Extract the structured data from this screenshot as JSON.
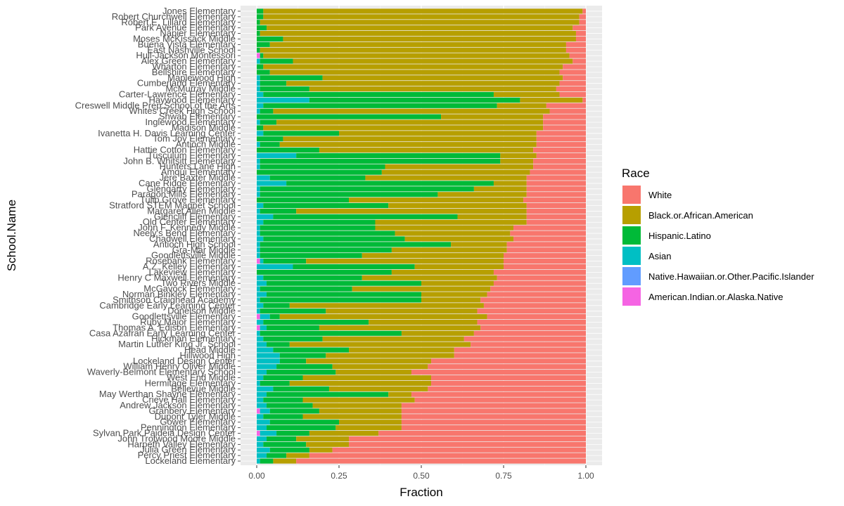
{
  "chart_data": {
    "type": "bar",
    "orientation": "horizontal",
    "stacked": true,
    "xlabel": "Fraction",
    "ylabel": "School.Name",
    "xlim": [
      0,
      1
    ],
    "x_ticks": [
      "0.00",
      "0.25",
      "0.50",
      "0.75",
      "1.00"
    ],
    "grid": true,
    "legend_position": "right",
    "legend": {
      "title": "Race",
      "entries": [
        {
          "name": "White",
          "color": "#F8766D"
        },
        {
          "name": "Black.or.African.American",
          "color": "#B79F00"
        },
        {
          "name": "Hispanic.Latino",
          "color": "#00BA38"
        },
        {
          "name": "Asian",
          "color": "#00BFC4"
        },
        {
          "name": "Native.Hawaiian.or.Other.Pacific.Islander",
          "color": "#619CFF"
        },
        {
          "name": "American.Indian.or.Alaska.Native",
          "color": "#F564E3"
        }
      ]
    },
    "stack_order_from_left": [
      "American.Indian.or.Alaska.Native",
      "Native.Hawaiian.or.Other.Pacific.Islander",
      "Asian",
      "Hispanic.Latino",
      "Black.or.African.American",
      "White"
    ],
    "categories": [
      "Jones Elementary",
      "Robert Churchwell Elementary",
      "Robert E. Lillard Elementary",
      "Park Avenue Elementary",
      "Napier Elementary",
      "Moses McKissack Middle",
      "Buena Vista Elementary",
      "East Nashville School",
      "Hull-Jackson Montessori",
      "Alex Green Elementary",
      "Wharton Elementary",
      "Bellshire Elementary",
      "Maplewood High",
      "Cumberland Elementary",
      "McMurray Middle",
      "Carter-Lawrence Elementary",
      "Haywood Elementary",
      "Creswell Middle Prep School of the Arts",
      "Whites Creek High School",
      "Shwab Elementary",
      "Inglewood Elementary",
      "Madison Middle",
      "Ivanetta H. Davis Learning Center",
      "Tom Joy Elementary",
      "Antioch Middle",
      "Hattie Cotton Elementary",
      "Tusculum Elementary",
      "John B. Whitsitt Elementary",
      "Hunters Lane High",
      "Amqui Elementary",
      "Jere Baxter Middle",
      "Cane Ridge Elementary",
      "Glengarry Elementary",
      "Paragon Mills Elementary",
      "Tulip Grove Elementary",
      "Stratford STEM Magnet School",
      "Margaret Allen Middle",
      "Glencliff Elementary",
      "Old Center Elementary",
      "John F. Kennedy Middle",
      "Neely's Bend Elementary",
      "Chadwell Elementary",
      "Antioch High School",
      "Gra-Mar Middle",
      "Goodlettsville Middle",
      "Rosebank Elementary",
      "A.Z. Kelley Elementary",
      "Lakeview Elementary",
      "Henry C Maxwell Elementary",
      "Two Rivers Middle",
      "McGavock Elementary",
      "Norman Binkley Elementary",
      "Smithson Craighead Academy",
      "Cambridge Early Learning Center",
      "Donelson Middle",
      "Goodlettsville Elementary",
      "Ruby Major Elementary",
      "Thomas A. Edison Elementary",
      "Casa Azafran Early Learning Center",
      "Hickman Elementary",
      "Martin Luther King Jr. School",
      "Head Middle",
      "Hillwood High",
      "Lockeland Design Center",
      "William Henry Oliver Middle",
      "Waverly-Belmont Elementary School",
      "West End Middle",
      "Hermitage Elementary",
      "Bellevue Middle",
      "May Werthan Shayne Elementary",
      "Crieve Hall Elementary",
      "Andrew Jackson Elementary",
      "Granbery Elementary",
      "Dupont Tyler Middle",
      "Gower Elementary",
      "Pennington Elementary",
      "Sylvan Park Paideia Design Center",
      "John Trotwood Moore Middle",
      "Harpeth Valley Elementary",
      "Julia Green Elementary",
      "Percy Priest Elementary",
      "Lockeland Elementary"
    ],
    "x_encoding": "cumulative fraction",
    "series": [
      {
        "name": "American.Indian.or.Alaska.Native",
        "values": [
          0.0,
          0.0,
          0.0,
          0.0,
          0.0,
          0.0,
          0.0,
          0.0,
          0.01,
          0.0,
          0.0,
          0.0,
          0.0,
          0.0,
          0.0,
          0.0,
          0.0,
          0.0,
          0.0,
          0.0,
          0.0,
          0.0,
          0.0,
          0.0,
          0.0,
          0.0,
          0.0,
          0.0,
          0.0,
          0.0,
          0.0,
          0.0,
          0.0,
          0.0,
          0.0,
          0.0,
          0.0,
          0.0,
          0.0,
          0.0,
          0.0,
          0.0,
          0.0,
          0.0,
          0.0,
          0.01,
          0.0,
          0.0,
          0.0,
          0.0,
          0.0,
          0.0,
          0.0,
          0.0,
          0.0,
          0.01,
          0.0,
          0.01,
          0.0,
          0.0,
          0.0,
          0.0,
          0.0,
          0.0,
          0.0,
          0.0,
          0.0,
          0.0,
          0.0,
          0.0,
          0.0,
          0.0,
          0.01,
          0.0,
          0.0,
          0.0,
          0.01,
          0.0,
          0.0,
          0.0,
          0.0,
          0.0
        ]
      },
      {
        "name": "Native.Hawaiian.or.Other.Pacific.Islander",
        "values": [
          0.0,
          0.0,
          0.0,
          0.0,
          0.0,
          0.0,
          0.0,
          0.0,
          0.0,
          0.0,
          0.0,
          0.0,
          0.0,
          0.0,
          0.0,
          0.0,
          0.0,
          0.0,
          0.0,
          0.0,
          0.0,
          0.0,
          0.0,
          0.0,
          0.0,
          0.0,
          0.0,
          0.0,
          0.0,
          0.0,
          0.0,
          0.0,
          0.0,
          0.0,
          0.0,
          0.0,
          0.0,
          0.0,
          0.0,
          0.0,
          0.0,
          0.0,
          0.0,
          0.0,
          0.0,
          0.0,
          0.0,
          0.0,
          0.0,
          0.0,
          0.0,
          0.0,
          0.0,
          0.0,
          0.0,
          0.0,
          0.0,
          0.0,
          0.0,
          0.0,
          0.0,
          0.0,
          0.0,
          0.0,
          0.0,
          0.0,
          0.0,
          0.0,
          0.0,
          0.0,
          0.0,
          0.0,
          0.0,
          0.0,
          0.0,
          0.0,
          0.0,
          0.0,
          0.0,
          0.0,
          0.0,
          0.0
        ]
      },
      {
        "name": "Asian",
        "values": [
          0.0,
          0.0,
          0.0,
          0.0,
          0.0,
          0.0,
          0.0,
          0.0,
          0.0,
          0.01,
          0.0,
          0.0,
          0.01,
          0.01,
          0.01,
          0.02,
          0.16,
          0.02,
          0.01,
          0.0,
          0.01,
          0.0,
          0.02,
          0.0,
          0.01,
          0.0,
          0.12,
          0.01,
          0.01,
          0.0,
          0.04,
          0.09,
          0.01,
          0.01,
          0.0,
          0.02,
          0.01,
          0.05,
          0.02,
          0.01,
          0.01,
          0.02,
          0.01,
          0.01,
          0.01,
          0.01,
          0.11,
          0.0,
          0.02,
          0.03,
          0.01,
          0.03,
          0.01,
          0.02,
          0.01,
          0.03,
          0.02,
          0.02,
          0.01,
          0.02,
          0.03,
          0.05,
          0.07,
          0.07,
          0.06,
          0.03,
          0.02,
          0.01,
          0.05,
          0.03,
          0.02,
          0.03,
          0.03,
          0.02,
          0.04,
          0.03,
          0.05,
          0.03,
          0.02,
          0.04,
          0.03,
          0.01
        ]
      },
      {
        "name": "Hispanic.Latino",
        "values": [
          0.02,
          0.02,
          0.01,
          0.03,
          0.01,
          0.08,
          0.04,
          0.01,
          0.01,
          0.1,
          0.02,
          0.04,
          0.19,
          0.08,
          0.15,
          0.7,
          0.64,
          0.71,
          0.04,
          0.56,
          0.05,
          0.02,
          0.23,
          0.08,
          0.06,
          0.19,
          0.62,
          0.73,
          0.38,
          0.38,
          0.29,
          0.63,
          0.65,
          0.54,
          0.28,
          0.38,
          0.11,
          0.56,
          0.34,
          0.35,
          0.41,
          0.43,
          0.58,
          0.4,
          0.31,
          0.13,
          0.37,
          0.41,
          0.3,
          0.47,
          0.28,
          0.47,
          0.49,
          0.08,
          0.2,
          0.03,
          0.32,
          0.16,
          0.43,
          0.18,
          0.07,
          0.23,
          0.14,
          0.08,
          0.17,
          0.21,
          0.12,
          0.09,
          0.17,
          0.37,
          0.12,
          0.14,
          0.15,
          0.12,
          0.21,
          0.21,
          0.1,
          0.09,
          0.13,
          0.12,
          0.06,
          0.04
        ]
      },
      {
        "name": "Black.or.African.American",
        "values": [
          0.97,
          0.96,
          0.97,
          0.93,
          0.96,
          0.89,
          0.9,
          0.93,
          0.93,
          0.85,
          0.91,
          0.88,
          0.73,
          0.83,
          0.75,
          0.2,
          0.19,
          0.15,
          0.84,
          0.31,
          0.81,
          0.85,
          0.6,
          0.77,
          0.78,
          0.65,
          0.11,
          0.1,
          0.45,
          0.45,
          0.49,
          0.1,
          0.16,
          0.27,
          0.53,
          0.42,
          0.7,
          0.21,
          0.46,
          0.42,
          0.35,
          0.33,
          0.17,
          0.35,
          0.43,
          0.6,
          0.27,
          0.31,
          0.41,
          0.22,
          0.42,
          0.2,
          0.18,
          0.59,
          0.46,
          0.63,
          0.33,
          0.49,
          0.22,
          0.43,
          0.55,
          0.32,
          0.39,
          0.38,
          0.29,
          0.23,
          0.39,
          0.43,
          0.3,
          0.07,
          0.34,
          0.27,
          0.25,
          0.3,
          0.19,
          0.2,
          0.21,
          0.16,
          0.13,
          0.07,
          0.07,
          0.07
        ]
      },
      {
        "name": "White",
        "values": [
          0.01,
          0.02,
          0.02,
          0.04,
          0.03,
          0.03,
          0.06,
          0.06,
          0.05,
          0.04,
          0.07,
          0.08,
          0.07,
          0.08,
          0.09,
          0.08,
          0.01,
          0.12,
          0.11,
          0.13,
          0.13,
          0.13,
          0.15,
          0.15,
          0.15,
          0.16,
          0.15,
          0.16,
          0.16,
          0.17,
          0.18,
          0.18,
          0.18,
          0.18,
          0.19,
          0.18,
          0.18,
          0.18,
          0.18,
          0.22,
          0.23,
          0.22,
          0.24,
          0.24,
          0.25,
          0.25,
          0.25,
          0.28,
          0.27,
          0.28,
          0.29,
          0.3,
          0.32,
          0.31,
          0.33,
          0.3,
          0.33,
          0.32,
          0.34,
          0.37,
          0.35,
          0.4,
          0.4,
          0.47,
          0.48,
          0.53,
          0.47,
          0.47,
          0.48,
          0.53,
          0.52,
          0.56,
          0.56,
          0.56,
          0.56,
          0.56,
          0.63,
          0.72,
          0.72,
          0.77,
          0.84,
          0.88
        ]
      }
    ]
  }
}
